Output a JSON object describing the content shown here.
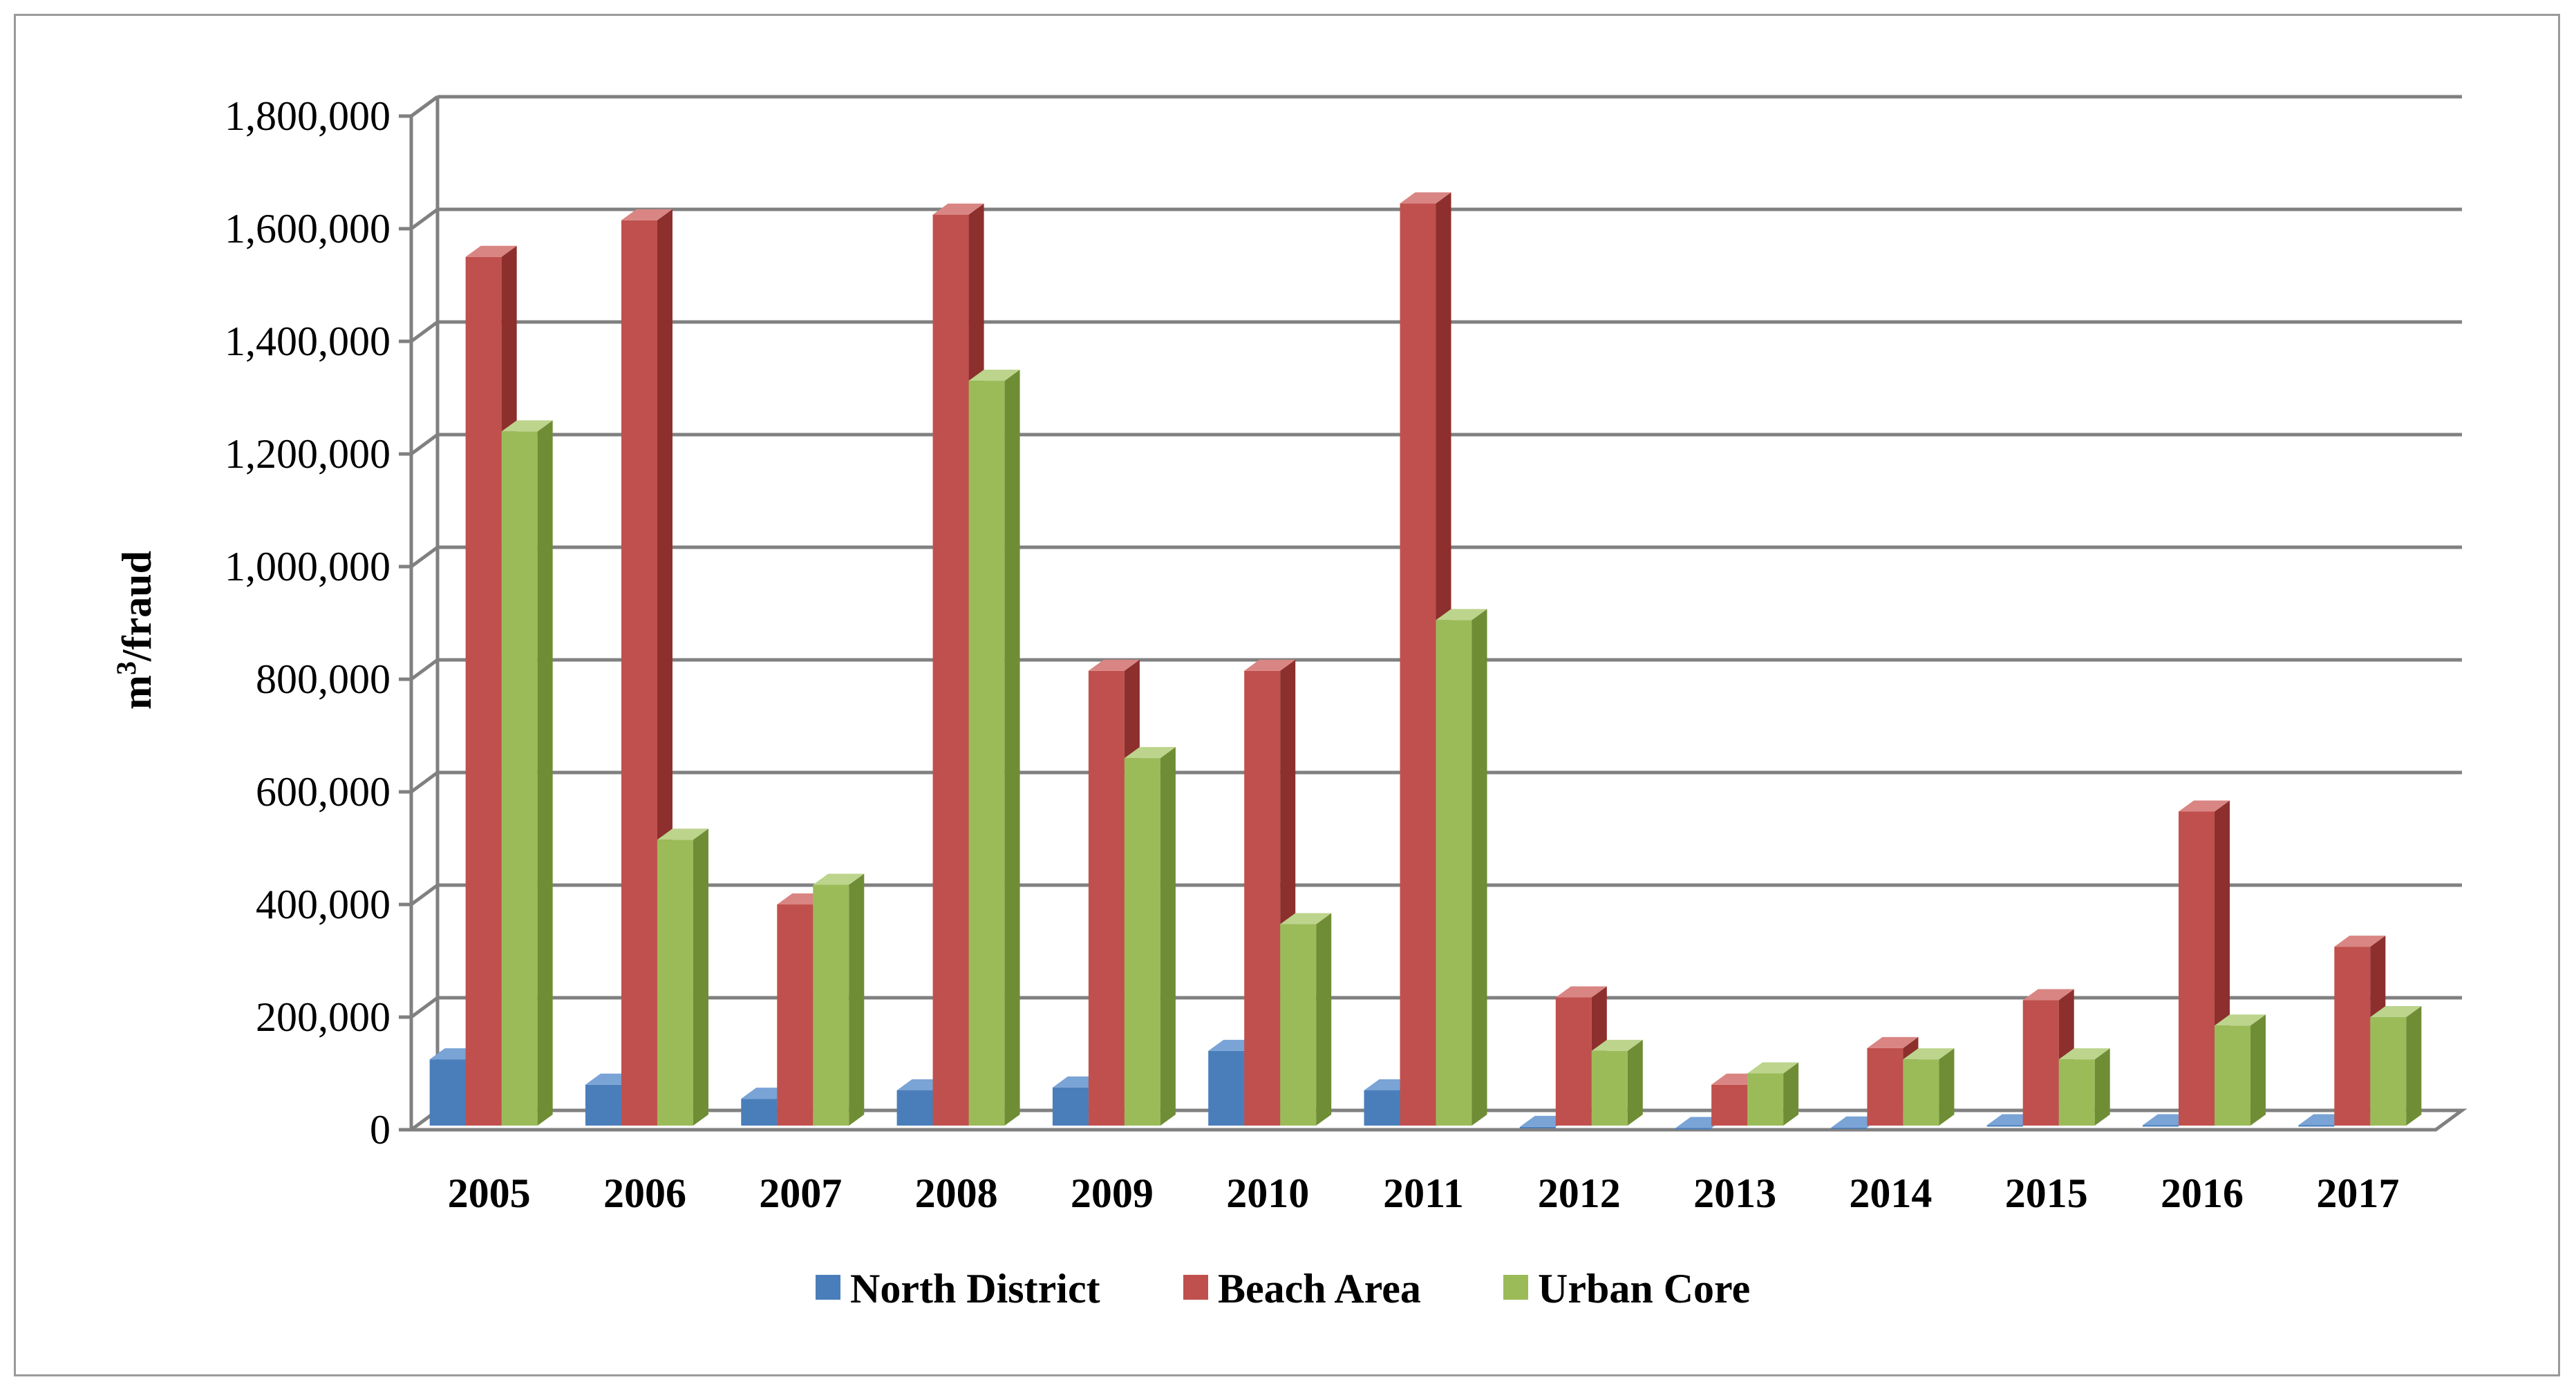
{
  "chart_data": {
    "type": "bar",
    "style": "3d-clustered-column",
    "title": "",
    "xlabel": "",
    "ylabel": "m³/fraud",
    "ylabel_main": "m",
    "ylabel_sup": "3",
    "ylabel_rest": "/fraud",
    "ylim": [
      0,
      1800000
    ],
    "yticks": [
      0,
      200000,
      400000,
      600000,
      800000,
      1000000,
      1200000,
      1400000,
      1600000,
      1800000
    ],
    "ytick_labels": [
      "0",
      "200,000",
      "400,000",
      "600,000",
      "800,000",
      "1,000,000",
      "1,200,000",
      "1,400,000",
      "1,600,000",
      "1,800,000"
    ],
    "grid": true,
    "legend_position": "bottom",
    "categories": [
      "2005",
      "2006",
      "2007",
      "2008",
      "2009",
      "2010",
      "2011",
      "2012",
      "2013",
      "2014",
      "2015",
      "2016",
      "2017"
    ],
    "series": [
      {
        "name": "North District",
        "color": "#4a7ebb",
        "side_color": "#2f5b91",
        "top_color": "#7aa3d6",
        "values": [
          125000,
          80000,
          55000,
          70000,
          75000,
          140000,
          70000,
          5000,
          3000,
          4000,
          8000,
          8000,
          8000
        ]
      },
      {
        "name": "Beach Area",
        "color": "#c0504d",
        "side_color": "#8c2f2d",
        "top_color": "#d98583",
        "values": [
          1550000,
          1615000,
          400000,
          1625000,
          815000,
          815000,
          1645000,
          235000,
          80000,
          145000,
          230000,
          565000,
          325000
        ]
      },
      {
        "name": "Urban Core",
        "color": "#9bbb59",
        "side_color": "#6f8d35",
        "top_color": "#bcd48c",
        "values": [
          1240000,
          515000,
          435000,
          1330000,
          660000,
          365000,
          905000,
          140000,
          100000,
          125000,
          125000,
          185000,
          200000
        ]
      }
    ]
  }
}
